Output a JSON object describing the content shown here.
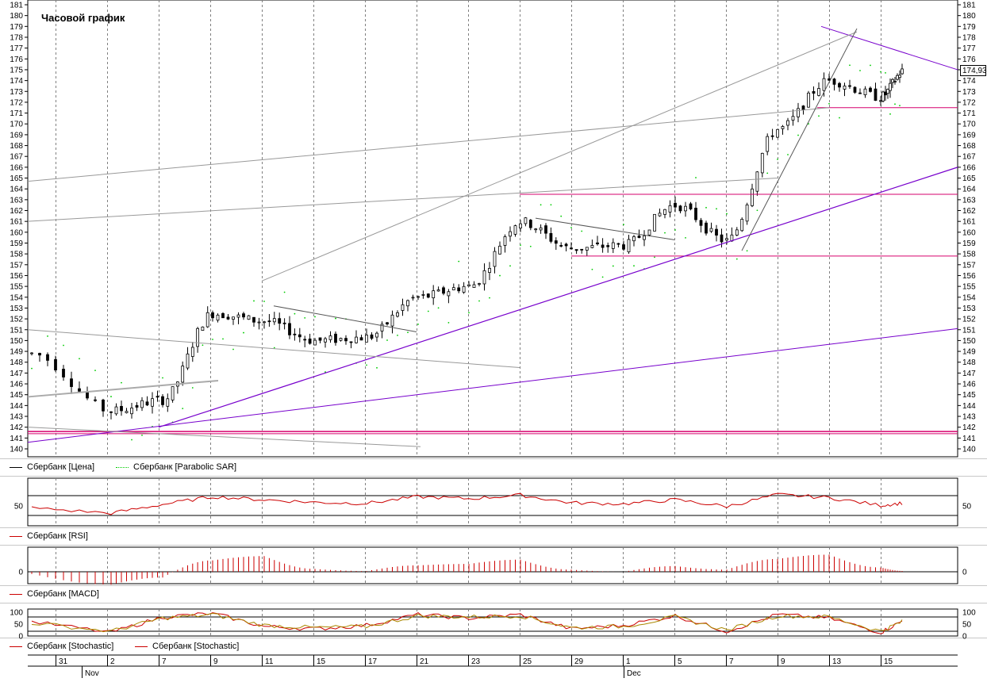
{
  "chart_title": "Часовой график",
  "last_price_label": "174,93",
  "legends": {
    "price": [
      {
        "name": "Сбербанк [Цена]",
        "color": "#000000",
        "style": "solid"
      },
      {
        "name": "Сбербанк [Parabolic SAR]",
        "color": "#00cc00",
        "style": "dotted"
      }
    ],
    "rsi": [
      {
        "name": "Сбербанк [RSI]",
        "color": "#cc0000",
        "style": "solid"
      }
    ],
    "macd": [
      {
        "name": "Сбербанк [MACD]",
        "color": "#cc0000",
        "style": "solid"
      }
    ],
    "stochastic": [
      {
        "name": "Сбербанк [Stochastic]",
        "color": "#cc0000",
        "style": "solid"
      },
      {
        "name": "Сбербанк [Stochastic]",
        "color": "#cc0000",
        "style": "solid"
      }
    ]
  },
  "x_axis": {
    "day_ticks": [
      "31",
      "2",
      "7",
      "9",
      "11",
      "15",
      "17",
      "21",
      "23",
      "25",
      "29",
      "1",
      "5",
      "7",
      "9",
      "13",
      "15"
    ],
    "months": [
      "Nov",
      "Dec"
    ]
  },
  "chart_data": [
    {
      "type": "candlestick",
      "panel": "price",
      "ylim": [
        139.5,
        181.5
      ],
      "y_ticks": [
        140,
        141,
        142,
        143,
        144,
        145,
        146,
        147,
        148,
        149,
        150,
        151,
        152,
        153,
        154,
        155,
        156,
        157,
        158,
        159,
        160,
        161,
        162,
        163,
        164,
        165,
        166,
        167,
        168,
        169,
        170,
        171,
        172,
        173,
        174,
        175,
        176,
        177,
        178,
        179,
        180,
        181
      ],
      "grid": true,
      "x": [
        "31 Oct",
        "2 Nov",
        "7 Nov",
        "9 Nov",
        "11 Nov",
        "15 Nov",
        "17 Nov",
        "21 Nov",
        "23 Nov",
        "25 Nov",
        "29 Nov",
        "1 Dec",
        "5 Dec",
        "7 Dec",
        "9 Dec",
        "13 Dec",
        "15 Dec",
        "16 Dec"
      ],
      "close": [
        148.8,
        143.5,
        144.5,
        152.5,
        151.8,
        150.0,
        150.3,
        154.0,
        155.0,
        161.0,
        158.5,
        158.8,
        162.5,
        159.2,
        169.5,
        174.0,
        172.5,
        174.93
      ],
      "last_close": 174.93
    },
    {
      "type": "line",
      "panel": "rsi",
      "levels": [
        30,
        70
      ],
      "y_ticks": [
        50
      ],
      "x": [
        "31 Oct",
        "2 Nov",
        "7 Nov",
        "9 Nov",
        "11 Nov",
        "15 Nov",
        "17 Nov",
        "21 Nov",
        "23 Nov",
        "25 Nov",
        "29 Nov",
        "1 Dec",
        "5 Dec",
        "7 Dec",
        "9 Dec",
        "13 Dec",
        "15 Dec",
        "16 Dec"
      ],
      "values": [
        46,
        36,
        53,
        68,
        62,
        57,
        55,
        68,
        64,
        71,
        56,
        54,
        62,
        49,
        72,
        66,
        51,
        56
      ]
    },
    {
      "type": "bar",
      "panel": "macd",
      "y_ticks": [
        0
      ],
      "x": [
        "31 Oct",
        "2 Nov",
        "7 Nov",
        "9 Nov",
        "11 Nov",
        "15 Nov",
        "17 Nov",
        "21 Nov",
        "23 Nov",
        "25 Nov",
        "29 Nov",
        "1 Dec",
        "5 Dec",
        "7 Dec",
        "9 Dec",
        "13 Dec",
        "15 Dec",
        "16 Dec"
      ],
      "values": [
        -0.3,
        -1.8,
        -0.8,
        1.6,
        2.2,
        0.4,
        0.1,
        0.9,
        1.1,
        1.7,
        0.3,
        0.0,
        0.8,
        0.3,
        1.8,
        2.4,
        0.6,
        0.1
      ]
    },
    {
      "type": "line",
      "panel": "stochastic",
      "y_ticks": [
        0,
        50,
        100
      ],
      "levels": [
        20,
        80
      ],
      "x": [
        "31 Oct",
        "2 Nov",
        "7 Nov",
        "9 Nov",
        "11 Nov",
        "15 Nov",
        "17 Nov",
        "21 Nov",
        "23 Nov",
        "25 Nov",
        "29 Nov",
        "1 Dec",
        "5 Dec",
        "7 Dec",
        "9 Dec",
        "13 Dec",
        "15 Dec",
        "16 Dec"
      ],
      "series": [
        {
          "values": [
            60,
            15,
            80,
            95,
            40,
            30,
            45,
            90,
            75,
            90,
            30,
            45,
            85,
            20,
            90,
            75,
            15,
            68
          ]
        },
        {
          "values": [
            55,
            20,
            75,
            90,
            45,
            35,
            40,
            85,
            80,
            85,
            35,
            40,
            80,
            25,
            85,
            80,
            20,
            65
          ]
        }
      ]
    }
  ]
}
